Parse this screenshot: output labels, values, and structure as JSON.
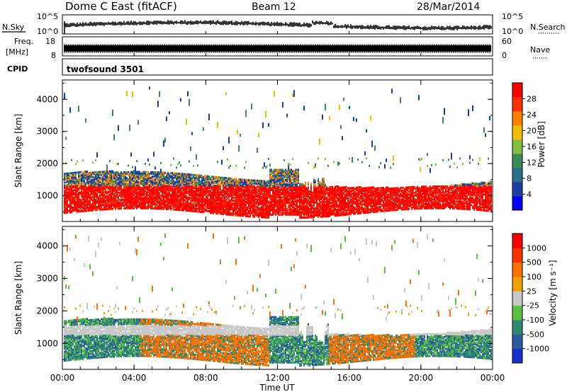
{
  "header": {
    "title": "Dome C East (fitACF)",
    "beam": "Beam 12",
    "date": "28/Mar/2014"
  },
  "strips": {
    "nsky_label": "N.Sky",
    "nsearch_label": "N.Search",
    "noise_ticks": [
      "10^5",
      "10^0"
    ],
    "freq_label": "Freq.",
    "freq_unit": "[MHz]",
    "freq_ticks": [
      "18",
      "8"
    ],
    "nave_label": "Nave",
    "nave_ticks": [
      "60",
      "0"
    ],
    "cpid_label": "CPID",
    "cpid_value": "twofsound 3501"
  },
  "chart_data": [
    {
      "type": "heatmap",
      "ylabel": "Slant Range [km]",
      "ylim": [
        200,
        4600
      ],
      "yticks": [
        "4000",
        "3000",
        "2000",
        "1000"
      ],
      "xlabel": "",
      "colorbar": {
        "label": "Power [dB]",
        "ticks": [
          "28",
          "24",
          "20",
          "16",
          "12",
          "8",
          "4"
        ],
        "colors": [
          "#0000ff",
          "#1a3fa6",
          "#2a6e8a",
          "#3a8a5a",
          "#7fc040",
          "#f0c000",
          "#ff8000",
          "#ff3000",
          "#ff0000"
        ]
      }
    },
    {
      "type": "heatmap",
      "ylabel": "Slant Range [km]",
      "ylim": [
        200,
        4600
      ],
      "yticks": [
        "4000",
        "3000",
        "2000",
        "1000"
      ],
      "xlabel": "Time UT",
      "xticks": [
        "00:00",
        "04:00",
        "08:00",
        "12:00",
        "16:00",
        "20:00",
        "00:00"
      ],
      "colorbar": {
        "label": "Velocity [m s⁻¹]",
        "ticks": [
          "1000",
          "500",
          "100",
          "25",
          "-25",
          "-100",
          "-500",
          "-1000"
        ],
        "colors": [
          "#1a2fd0",
          "#2a5aa0",
          "#2f8a70",
          "#5ac040",
          "#c8c8c8",
          "#f0a000",
          "#ff7000",
          "#ff3000",
          "#ff0000"
        ]
      }
    }
  ]
}
